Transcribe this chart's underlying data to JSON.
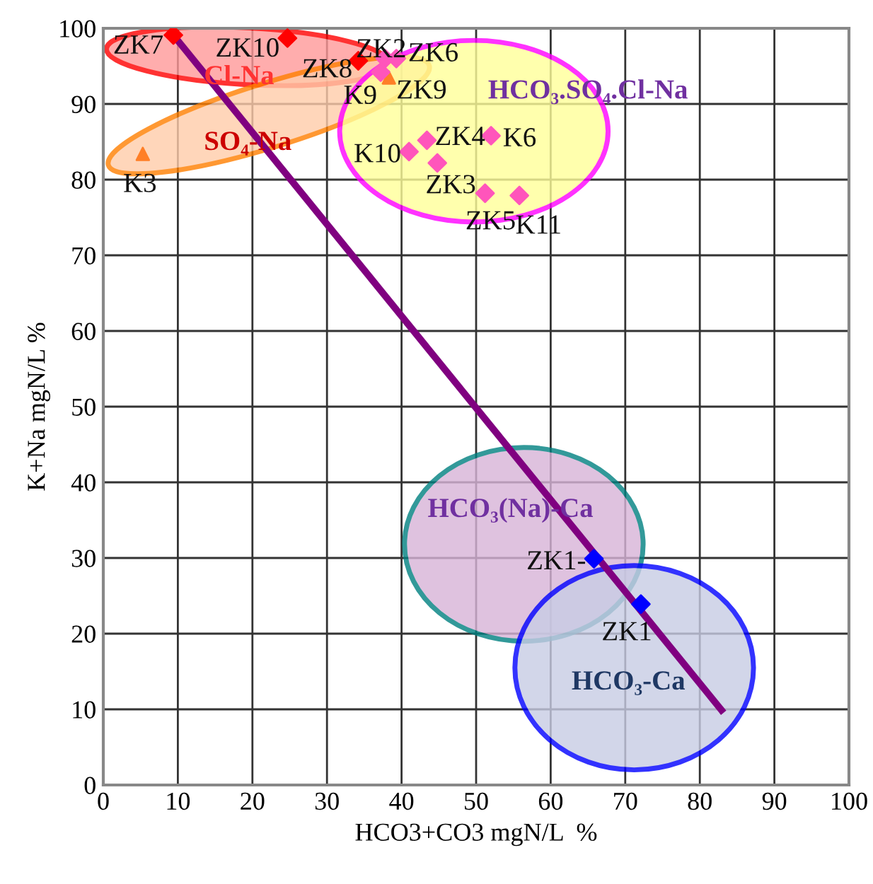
{
  "chart_data": {
    "type": "scatter",
    "xlabel": "HCO3+CO3 mgN/L  %",
    "ylabel": "K+Na mgN/L %",
    "xlim": [
      0,
      100
    ],
    "ylim": [
      0,
      100
    ],
    "xticks": [
      0,
      10,
      20,
      30,
      40,
      50,
      60,
      70,
      80,
      90,
      100
    ],
    "yticks": [
      0,
      10,
      20,
      30,
      40,
      50,
      60,
      70,
      80,
      90,
      100
    ],
    "grid": true,
    "legend": false,
    "series": [
      {
        "marker": "diamond",
        "color": "#ff0000",
        "x": [
          9.4,
          24.7,
          34.2
        ],
        "values": [
          99.1,
          98.7,
          95.7
        ]
      },
      {
        "marker": "triangle",
        "color": "#ff7f27",
        "x": [
          5.3,
          38.3
        ],
        "values": [
          83.4,
          93.5
        ]
      },
      {
        "marker": "diamond",
        "color": "#ff55bb",
        "x": [
          37.8,
          39.3,
          37.2,
          41.0,
          43.4,
          44.8,
          52.0,
          51.2,
          55.8
        ],
        "values": [
          96.0,
          96.0,
          94.2,
          83.7,
          85.2,
          82.2,
          85.8,
          78.2,
          77.9
        ]
      },
      {
        "marker": "diamond",
        "color": "#0000ff",
        "x": [
          65.8,
          72.1
        ],
        "values": [
          29.9,
          23.9
        ]
      },
      {
        "type": "line",
        "marker": "none",
        "color": "#800080",
        "x": [
          9.4,
          82.9
        ],
        "values": [
          99.1,
          9.9
        ]
      }
    ],
    "annotations": [
      {
        "text": "ZK7",
        "x": 9.4,
        "y": 99.1
      },
      {
        "text": "ZK10",
        "x": 24.7,
        "y": 98.7
      },
      {
        "text": "ZK8",
        "x": 34.2,
        "y": 95.7
      },
      {
        "text": "ZK2",
        "x": 37.8,
        "y": 96.0
      },
      {
        "text": "ZK6",
        "x": 39.3,
        "y": 96.0
      },
      {
        "text": "K9",
        "x": 38.3,
        "y": 93.5
      },
      {
        "text": "ZK9",
        "x": 37.2,
        "y": 94.2
      },
      {
        "text": "K10",
        "x": 41.0,
        "y": 83.7
      },
      {
        "text": "ZK4",
        "x": 43.4,
        "y": 85.2
      },
      {
        "text": "ZK3",
        "x": 44.8,
        "y": 82.2
      },
      {
        "text": "K6",
        "x": 52.0,
        "y": 85.8
      },
      {
        "text": "ZK5",
        "x": 51.2,
        "y": 78.2
      },
      {
        "text": "K11",
        "x": 55.8,
        "y": 77.9
      },
      {
        "text": "K3",
        "x": 5.3,
        "y": 83.4
      },
      {
        "text": "ZK1-",
        "x": 65.8,
        "y": 29.9
      },
      {
        "text": "ZK1",
        "x": 72.1,
        "y": 23.9
      },
      "Cl-Na",
      "SO₄-Na",
      "HCO₃.SO₄.Cl-Na",
      "HCO₃(Na)-Ca",
      "HCO₃-Ca"
    ]
  }
}
